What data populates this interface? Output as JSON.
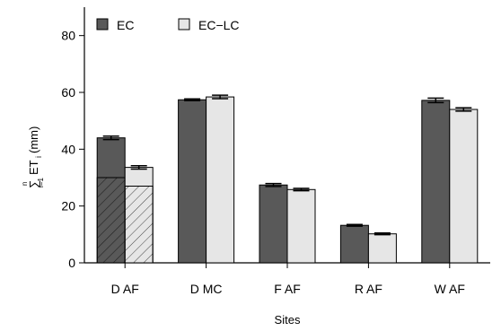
{
  "chart_data": {
    "type": "bar",
    "xlabel": "Sites",
    "ylabel": "ET",
    "ylabel_parts": {
      "sum": "∑",
      "upper": "n",
      "lower": "i=1",
      "main": "ET",
      "subscript": "i",
      "unit": " (mm)"
    },
    "ylim": [
      0,
      90
    ],
    "yticks": [
      0,
      20,
      40,
      60,
      80
    ],
    "categories": [
      "D AF",
      "D MC",
      "F AF",
      "R AF",
      "W AF"
    ],
    "series": [
      {
        "name": "EC",
        "color": "#595959",
        "values": [
          44.0,
          57.4,
          27.4,
          13.2,
          57.2
        ],
        "errors": [
          0.6,
          0.3,
          0.5,
          0.3,
          0.8
        ],
        "hatched_portion": [
          30.0,
          null,
          null,
          null,
          null
        ]
      },
      {
        "name": "EC−LC",
        "color": "#e6e6e6",
        "values": [
          33.6,
          58.4,
          25.8,
          10.2,
          54.0
        ],
        "errors": [
          0.6,
          0.6,
          0.4,
          0.3,
          0.6
        ],
        "hatched_portion": [
          27.0,
          null,
          null,
          null,
          null
        ]
      }
    ],
    "legend_position": "top-left",
    "grid": false
  }
}
